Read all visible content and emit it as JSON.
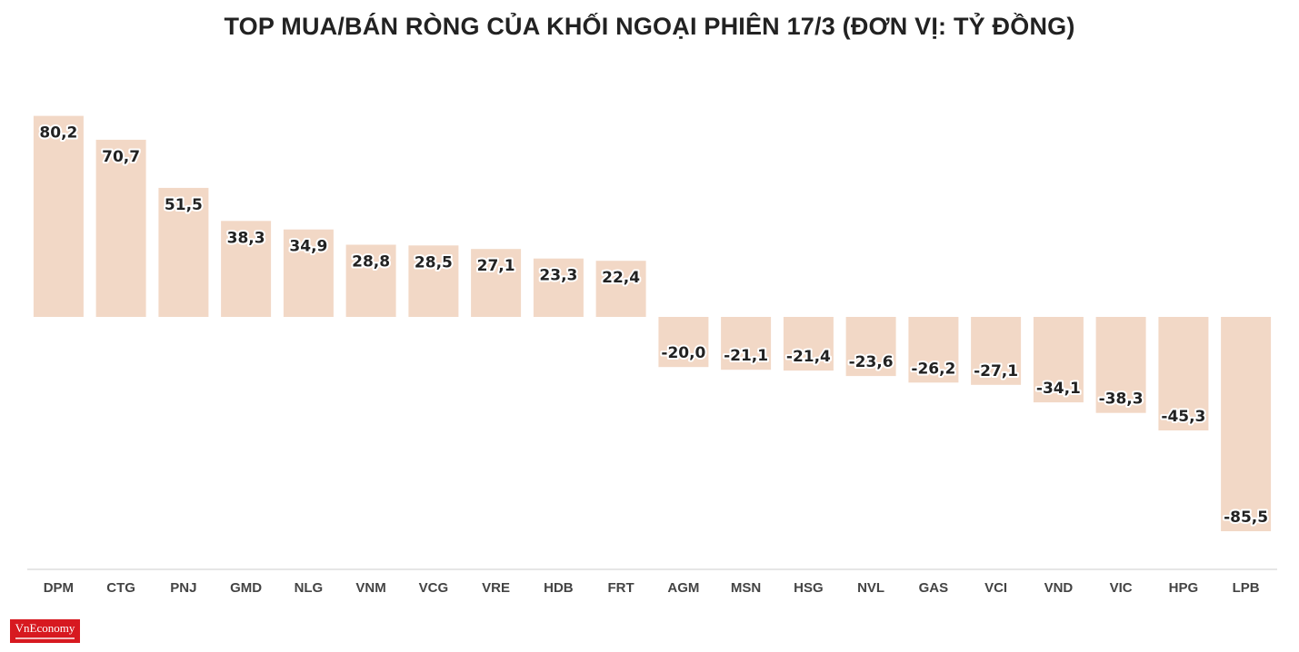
{
  "colors": {
    "bar": "#f2d8c6",
    "axis": "#cccccc",
    "text": "#222222",
    "brand": "#d71920"
  },
  "logo": {
    "text": "VnEconomy"
  },
  "chart_data": {
    "type": "bar",
    "title": "TOP MUA/BÁN RÒNG CỦA KHỐI NGOẠI PHIÊN 17/3 (ĐƠN VỊ: TỶ ĐỒNG)",
    "xlabel": "",
    "ylabel": "",
    "ylim": [
      -100,
      80.2
    ],
    "grid": false,
    "legend": "none",
    "categories": [
      "DPM",
      "CTG",
      "PNJ",
      "GMD",
      "NLG",
      "VNM",
      "VCG",
      "VRE",
      "HDB",
      "FRT",
      "AGM",
      "MSN",
      "HSG",
      "NVL",
      "GAS",
      "VCI",
      "VND",
      "VIC",
      "HPG",
      "LPB"
    ],
    "values": [
      80.2,
      70.7,
      51.5,
      38.3,
      34.9,
      28.8,
      28.5,
      27.1,
      23.3,
      22.4,
      -20.0,
      -21.1,
      -21.4,
      -23.6,
      -26.2,
      -27.1,
      -34.1,
      -38.3,
      -45.3,
      -85.5
    ],
    "data_labels": [
      "80,2",
      "70,7",
      "51,5",
      "38,3",
      "34,9",
      "28,8",
      "28,5",
      "27,1",
      "23,3",
      "22,4",
      "-20,0",
      "-21,1",
      "-21,4",
      "-23,6",
      "-26,2",
      "-27,1",
      "-34,1",
      "-38,3",
      "-45,3",
      "-85,5"
    ]
  }
}
